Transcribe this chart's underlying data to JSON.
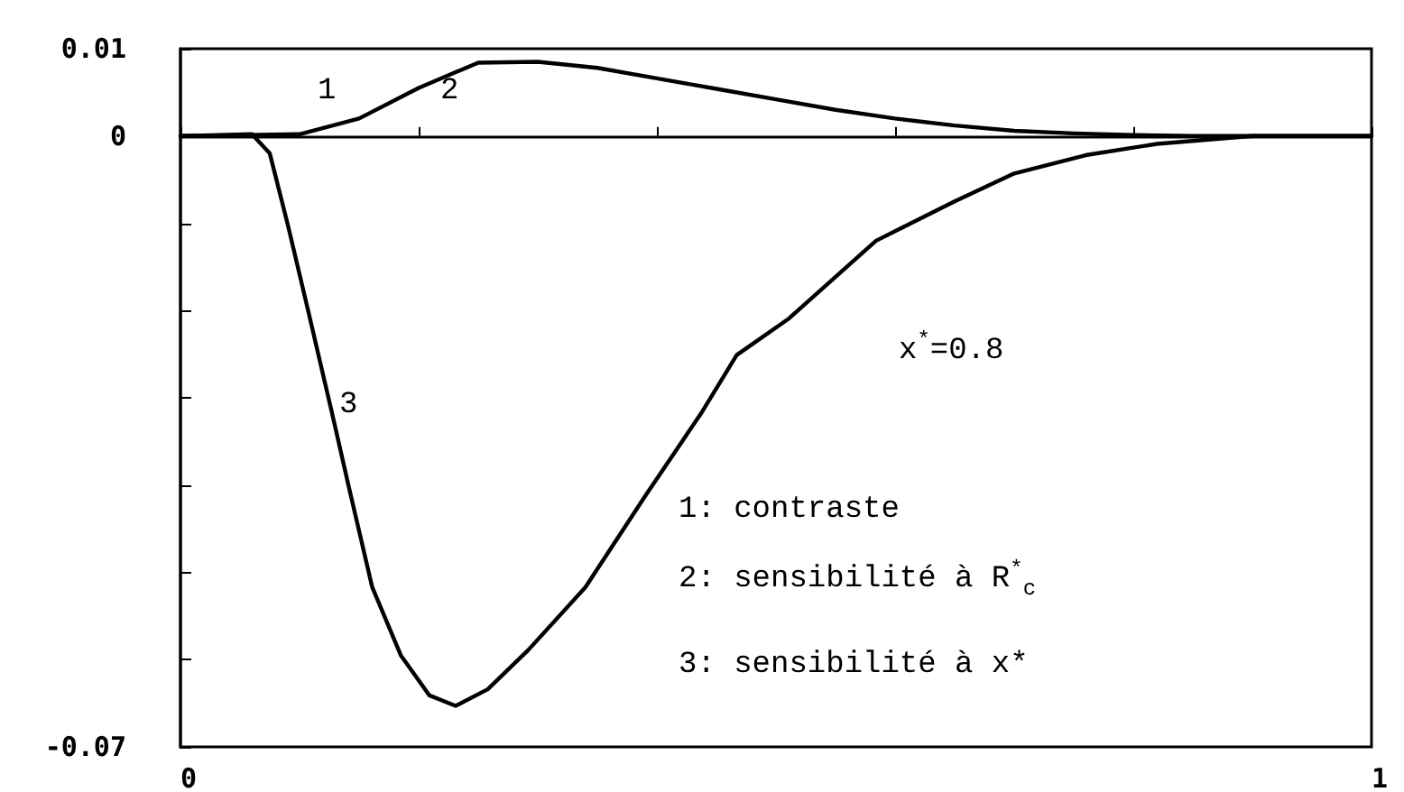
{
  "chart_data": {
    "type": "line",
    "x": [
      0,
      0.1,
      0.15,
      0.2,
      0.25,
      0.3,
      0.35,
      0.4,
      0.45,
      0.5,
      0.55,
      0.6,
      0.65,
      0.7,
      0.75,
      0.8,
      0.85,
      0.9,
      1
    ],
    "series": [
      {
        "color": "#000000",
        "values": [
          0,
          0.0002,
          0.002,
          0.0055,
          0.0084,
          0.0085,
          0.0078,
          0.0066,
          0.0054,
          0.0042,
          0.003,
          0.002,
          0.0012,
          0.0006,
          0.0003,
          0.0001,
          0,
          0,
          0
        ]
      },
      {
        "color": "#000000",
        "x": [
          0,
          0.06,
          0.075,
          0.09,
          0.107,
          0.127,
          0.141,
          0.161,
          0.185,
          0.209,
          0.231,
          0.258,
          0.292,
          0.34,
          0.39,
          0.438,
          0.467,
          0.511,
          0.584,
          0.65,
          0.7,
          0.76,
          0.82,
          0.9,
          1
        ],
        "values": [
          0,
          0.0002,
          -0.002,
          -0.0101,
          -0.0199,
          -0.0316,
          -0.04,
          -0.0517,
          -0.0595,
          -0.0641,
          -0.0653,
          -0.0634,
          -0.0589,
          -0.0517,
          -0.0413,
          -0.0316,
          -0.0251,
          -0.0209,
          -0.012,
          -0.0075,
          -0.0043,
          -0.0022,
          -0.0009,
          0,
          0
        ]
      }
    ],
    "xlim": [
      0,
      1
    ],
    "xticks": [
      0,
      {
        "value": 0.2,
        "label": null
      },
      {
        "value": 0.4,
        "label": null
      },
      {
        "value": 0.6,
        "label": null
      },
      {
        "value": 0.8,
        "label": null
      },
      1
    ],
    "ylim": [
      -0.07,
      0.01
    ],
    "yticks": [
      -0.07,
      {
        "value": -0.06,
        "label": null
      },
      {
        "value": -0.05,
        "label": null
      },
      {
        "value": -0.04,
        "label": null
      },
      {
        "value": -0.03,
        "label": null
      },
      {
        "value": -0.02,
        "label": null
      },
      {
        "value": -0.01,
        "label": null
      },
      0,
      0.01
    ],
    "marker": "none",
    "line_style": "solid",
    "annotations": [
      "1",
      "2",
      "3",
      "x$^{*}$=0.8",
      "1: contraste",
      "2: sensibilité à R$^{*}$$_{c}$",
      "3: sensibilité à x*"
    ]
  }
}
